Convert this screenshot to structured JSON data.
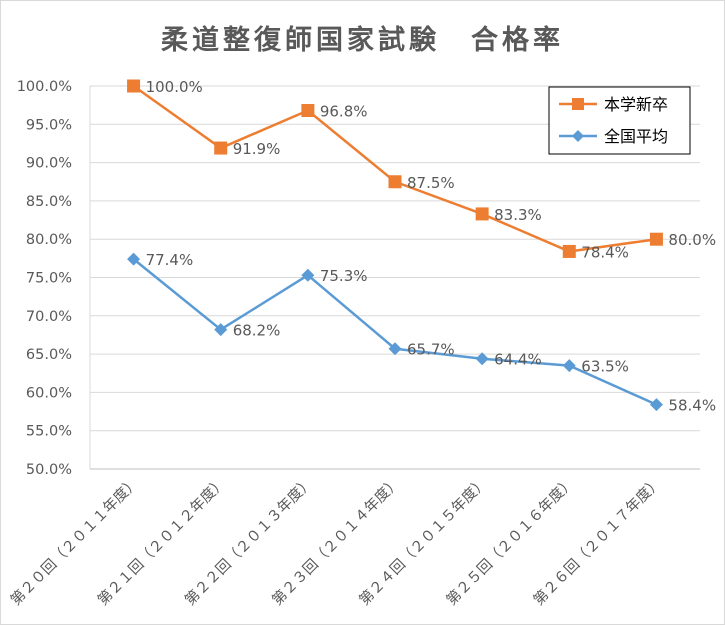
{
  "chart_data": {
    "type": "line",
    "title": "柔道整復師国家試験　合格率",
    "categories": [
      "第２０回（２０１１年度）",
      "第２１回（２０１２年度）",
      "第２２回（２０１３年度）",
      "第２３回（２０１４年度）",
      "第２４回（２０１５年度）",
      "第２５回（２０１６年度）",
      "第２６回（２０１７年度）"
    ],
    "ylim": [
      50,
      100
    ],
    "y_ticks": [
      "50.0%",
      "55.0%",
      "60.0%",
      "65.0%",
      "70.0%",
      "75.0%",
      "80.0%",
      "85.0%",
      "90.0%",
      "95.0%",
      "100.0%"
    ],
    "grid": true,
    "legend_position": "top-right",
    "series": [
      {
        "name": "本学新卒",
        "color": "#ed7d31",
        "marker": "square",
        "values": [
          100.0,
          91.9,
          96.8,
          87.5,
          83.3,
          78.4,
          80.0
        ],
        "labels": [
          "100.0%",
          "91.9%",
          "96.8%",
          "87.5%",
          "83.3%",
          "78.4%",
          "80.0%"
        ]
      },
      {
        "name": "全国平均",
        "color": "#5b9bd5",
        "marker": "diamond",
        "values": [
          77.4,
          68.2,
          75.3,
          65.7,
          64.4,
          63.5,
          58.4
        ],
        "labels": [
          "77.4%",
          "68.2%",
          "75.3%",
          "65.7%",
          "64.4%",
          "63.5%",
          "58.4%"
        ]
      }
    ]
  }
}
